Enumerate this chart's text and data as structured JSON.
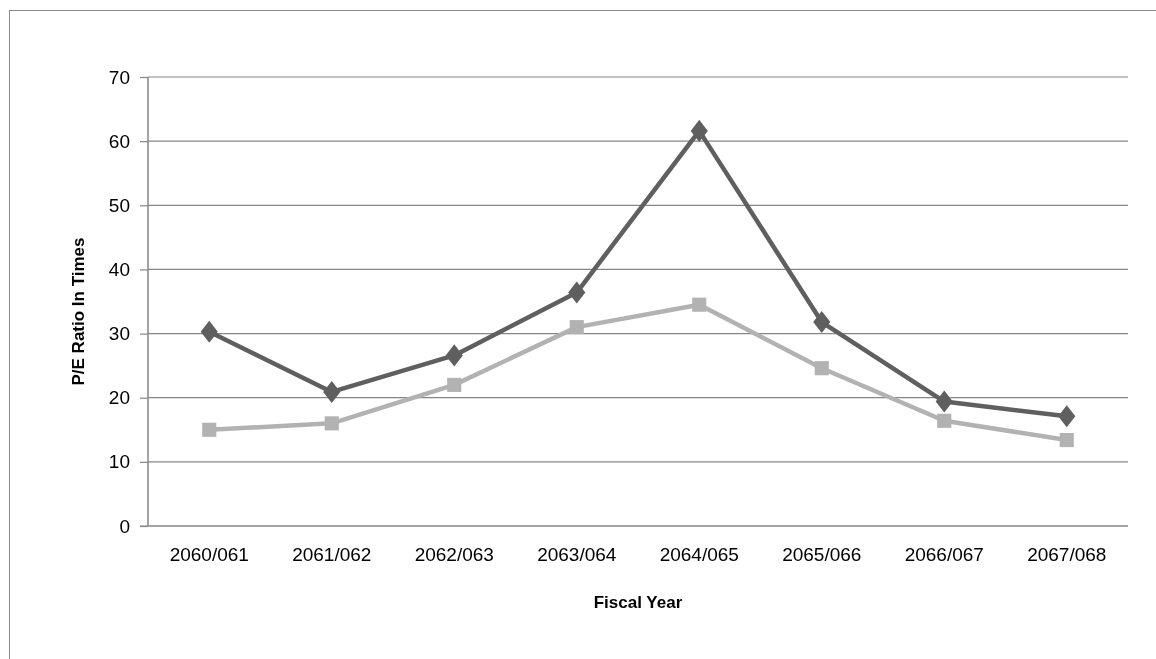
{
  "chart_data": {
    "type": "line",
    "xlabel": "Fiscal Year",
    "ylabel": "P/E Ratio In Times",
    "categories": [
      "2060/061",
      "2061/062",
      "2062/063",
      "2063/064",
      "2064/065",
      "2065/066",
      "2066/067",
      "2067/068"
    ],
    "series": [
      {
        "color": "#5f5f5f",
        "marker": "diamond",
        "values": [
          30.3,
          20.9,
          26.6,
          36.4,
          61.6,
          31.8,
          19.4,
          17.1
        ]
      },
      {
        "color": "#b2b2b2",
        "marker": "square",
        "values": [
          15.0,
          16.0,
          22.0,
          31.0,
          34.5,
          24.6,
          16.4,
          13.4
        ]
      }
    ],
    "ylim": [
      0,
      70
    ],
    "yticks": [
      0,
      10,
      20,
      30,
      40,
      50,
      60,
      70
    ],
    "grid": "y",
    "line_style": "solid"
  }
}
